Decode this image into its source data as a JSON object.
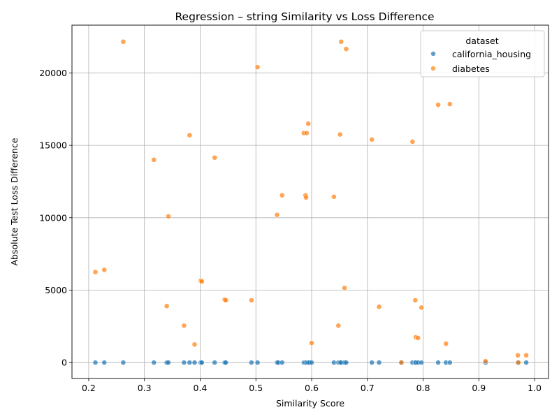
{
  "chart_data": {
    "type": "scatter",
    "title": "Regression – string Similarity vs Loss Difference",
    "xlabel": "Similarity Score",
    "ylabel": "Absolute Test Loss Difference",
    "xlim": [
      0.17,
      1.025
    ],
    "ylim": [
      -1100,
      23300
    ],
    "xticks": [
      "0.2",
      "0.3",
      "0.4",
      "0.5",
      "0.6",
      "0.7",
      "0.8",
      "0.9",
      "1.0"
    ],
    "xtick_values": [
      0.2,
      0.3,
      0.4,
      0.5,
      0.6,
      0.7,
      0.8,
      0.9,
      1.0
    ],
    "yticks": [
      "0",
      "5000",
      "10000",
      "15000",
      "20000"
    ],
    "ytick_values": [
      0,
      5000,
      10000,
      15000,
      20000
    ],
    "grid": true,
    "legend": {
      "title": "dataset",
      "placement": "top-right"
    },
    "series": [
      {
        "name": "california_housing",
        "color": "#1f77b4",
        "points": [
          [
            0.212,
            0
          ],
          [
            0.228,
            0
          ],
          [
            0.262,
            0
          ],
          [
            0.317,
            0
          ],
          [
            0.34,
            0
          ],
          [
            0.343,
            0
          ],
          [
            0.371,
            0
          ],
          [
            0.381,
            0
          ],
          [
            0.39,
            0
          ],
          [
            0.401,
            0
          ],
          [
            0.403,
            0
          ],
          [
            0.426,
            0
          ],
          [
            0.444,
            0
          ],
          [
            0.446,
            0
          ],
          [
            0.492,
            0
          ],
          [
            0.503,
            0
          ],
          [
            0.538,
            0
          ],
          [
            0.54,
            0
          ],
          [
            0.547,
            0
          ],
          [
            0.586,
            0
          ],
          [
            0.589,
            0
          ],
          [
            0.591,
            0
          ],
          [
            0.594,
            0
          ],
          [
            0.596,
            0
          ],
          [
            0.6,
            0
          ],
          [
            0.64,
            0
          ],
          [
            0.648,
            0
          ],
          [
            0.651,
            0
          ],
          [
            0.653,
            0
          ],
          [
            0.659,
            0
          ],
          [
            0.662,
            0
          ],
          [
            0.708,
            0
          ],
          [
            0.721,
            0
          ],
          [
            0.761,
            0
          ],
          [
            0.781,
            0
          ],
          [
            0.786,
            0
          ],
          [
            0.787,
            0
          ],
          [
            0.791,
            0
          ],
          [
            0.797,
            0
          ],
          [
            0.827,
            0
          ],
          [
            0.841,
            0
          ],
          [
            0.848,
            0
          ],
          [
            0.912,
            0
          ],
          [
            0.97,
            0
          ],
          [
            0.985,
            0
          ]
        ]
      },
      {
        "name": "diabetes",
        "color": "#ff7f0e",
        "points": [
          [
            0.212,
            6250
          ],
          [
            0.228,
            6400
          ],
          [
            0.262,
            22150
          ],
          [
            0.317,
            14000
          ],
          [
            0.34,
            3900
          ],
          [
            0.343,
            10100
          ],
          [
            0.371,
            2550
          ],
          [
            0.381,
            15700
          ],
          [
            0.39,
            1250
          ],
          [
            0.401,
            5650
          ],
          [
            0.403,
            5600
          ],
          [
            0.426,
            14150
          ],
          [
            0.444,
            4350
          ],
          [
            0.446,
            4300
          ],
          [
            0.492,
            4300
          ],
          [
            0.503,
            20400
          ],
          [
            0.538,
            10200
          ],
          [
            0.547,
            11550
          ],
          [
            0.586,
            15850
          ],
          [
            0.589,
            11550
          ],
          [
            0.59,
            11400
          ],
          [
            0.591,
            15850
          ],
          [
            0.594,
            16500
          ],
          [
            0.6,
            1350
          ],
          [
            0.64,
            11450
          ],
          [
            0.648,
            2550
          ],
          [
            0.651,
            15750
          ],
          [
            0.653,
            22150
          ],
          [
            0.659,
            5150
          ],
          [
            0.662,
            21650
          ],
          [
            0.708,
            15400
          ],
          [
            0.721,
            3850
          ],
          [
            0.761,
            0
          ],
          [
            0.781,
            15250
          ],
          [
            0.786,
            4300
          ],
          [
            0.787,
            1750
          ],
          [
            0.791,
            1700
          ],
          [
            0.797,
            3800
          ],
          [
            0.827,
            17800
          ],
          [
            0.841,
            1300
          ],
          [
            0.848,
            17850
          ],
          [
            0.912,
            100
          ],
          [
            0.97,
            500
          ],
          [
            0.971,
            0
          ],
          [
            0.985,
            500
          ]
        ]
      }
    ]
  }
}
